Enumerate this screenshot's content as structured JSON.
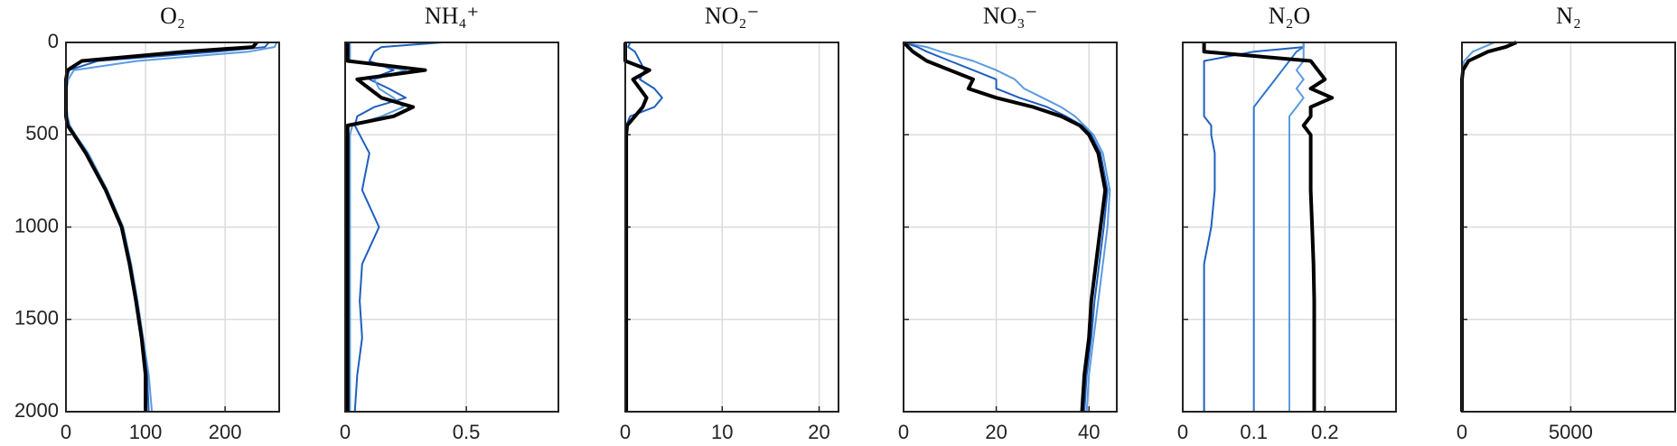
{
  "chart_data": [
    {
      "type": "line",
      "title": "O₂",
      "xlim": [
        0,
        268
      ],
      "xticks": [
        0,
        100,
        200
      ],
      "ylim": [
        0,
        2000
      ],
      "yticks": [
        0,
        500,
        1000,
        1500,
        2000
      ],
      "grid": true,
      "y_reversed": true,
      "y": [
        0,
        25,
        50,
        100,
        150,
        200,
        250,
        300,
        350,
        400,
        450,
        500,
        600,
        800,
        1000,
        1200,
        1400,
        1600,
        1800,
        2000
      ],
      "series": [
        {
          "color": "#5b9be0",
          "values": [
            265,
            262,
            230,
            90,
            10,
            3,
            1,
            1,
            1,
            2,
            5,
            12,
            28,
            52,
            72,
            82,
            90,
            97,
            104,
            108
          ]
        },
        {
          "color": "#1f5fbf",
          "values": [
            255,
            250,
            190,
            40,
            4,
            1,
            0,
            0,
            0,
            1,
            3,
            11,
            26,
            51,
            71,
            81,
            89,
            96,
            102,
            104
          ]
        },
        {
          "color": "#000000",
          "values": [
            240,
            235,
            150,
            20,
            2,
            0,
            0,
            0,
            0,
            0,
            2,
            10,
            25,
            50,
            70,
            80,
            88,
            95,
            100,
            100
          ]
        }
      ]
    },
    {
      "type": "line",
      "title": "NH₄⁺",
      "xlim": [
        0,
        0.88
      ],
      "xticks": [
        0,
        0.5
      ],
      "grid": true,
      "y": [
        0,
        25,
        50,
        100,
        150,
        200,
        250,
        300,
        350,
        400,
        450,
        500,
        600,
        800,
        1000,
        1200,
        1400,
        1600,
        1800,
        2000
      ],
      "series": [
        {
          "color": "#1f5fbf",
          "values": [
            0.4,
            0.15,
            0.12,
            0.1,
            0.2,
            0.1,
            0.18,
            0.25,
            0.12,
            0.05,
            0.04,
            0.06,
            0.1,
            0.07,
            0.14,
            0.07,
            0.06,
            0.07,
            0.05,
            0.04
          ]
        },
        {
          "color": "#5b9be0",
          "values": [
            0.02,
            0.02,
            0.02,
            0.02,
            0.25,
            0.12,
            0.14,
            0.2,
            0.24,
            0.15,
            0.03,
            0.02,
            0.02,
            0.02,
            0.02,
            0.02,
            0.02,
            0.02,
            0.02,
            0.02
          ]
        },
        {
          "color": "#000000",
          "values": [
            0.01,
            0.01,
            0.01,
            0.01,
            0.33,
            0.05,
            0.1,
            0.15,
            0.28,
            0.2,
            0.01,
            0.01,
            0.01,
            0.01,
            0.01,
            0.01,
            0.01,
            0.01,
            0.01,
            0.01
          ]
        }
      ]
    },
    {
      "type": "line",
      "title": "NO₂⁻",
      "xlim": [
        0,
        22
      ],
      "xticks": [
        0,
        10,
        20
      ],
      "grid": true,
      "y": [
        0,
        25,
        50,
        100,
        150,
        200,
        250,
        300,
        350,
        400,
        450,
        500,
        600,
        800,
        1000,
        1200,
        1400,
        1600,
        1800,
        2000
      ],
      "series": [
        {
          "color": "#1f5fbf",
          "values": [
            0.5,
            0.3,
            1,
            1.5,
            2,
            1.5,
            3,
            3.8,
            3,
            0.5,
            0.1,
            0.1,
            0.1,
            0.1,
            0.1,
            0.1,
            0.1,
            0.1,
            0.1,
            0.1
          ]
        },
        {
          "color": "#000000",
          "values": [
            0,
            0,
            0,
            0,
            2.5,
            0.8,
            1.5,
            2.2,
            1.8,
            1,
            0.2,
            0.1,
            0.1,
            0.1,
            0.1,
            0.1,
            0.1,
            0.1,
            0.1,
            0.1
          ]
        }
      ]
    },
    {
      "type": "line",
      "title": "NO₃⁻",
      "xlim": [
        0,
        46
      ],
      "xticks": [
        0,
        20,
        40
      ],
      "grid": true,
      "y": [
        0,
        25,
        50,
        100,
        150,
        200,
        250,
        300,
        350,
        400,
        450,
        500,
        600,
        800,
        1000,
        1200,
        1400,
        1600,
        1800,
        2000
      ],
      "series": [
        {
          "color": "#5b9be0",
          "values": [
            0,
            5,
            8,
            15,
            20,
            24,
            26,
            30,
            34,
            37,
            39,
            41,
            43,
            44.5,
            44,
            43,
            42,
            41,
            40,
            39.5
          ]
        },
        {
          "color": "#1f5fbf",
          "values": [
            0,
            3,
            5,
            10,
            15,
            20,
            20,
            25,
            31,
            35,
            38.5,
            40.5,
            42.5,
            44,
            43.2,
            42.2,
            41.2,
            40.5,
            39.5,
            39
          ]
        },
        {
          "color": "#000000",
          "values": [
            0,
            1,
            2,
            5,
            10,
            15,
            14,
            20,
            28,
            34,
            38,
            40,
            42,
            43.5,
            42.5,
            41.5,
            40.5,
            40,
            39,
            38.5
          ]
        }
      ]
    },
    {
      "type": "line",
      "title": "N₂O",
      "xlim": [
        0,
        0.3
      ],
      "xticks": [
        0,
        0.1,
        0.2
      ],
      "grid": true,
      "y": [
        0,
        25,
        50,
        100,
        150,
        200,
        250,
        300,
        350,
        400,
        450,
        500,
        600,
        800,
        1000,
        1200,
        1400,
        1600,
        1800,
        2000
      ],
      "series": [
        {
          "color": "#1f5fbf",
          "values": [
            0.17,
            0.17,
            0.1,
            0.03,
            0.03,
            0.03,
            0.03,
            0.03,
            0.03,
            0.03,
            0.04,
            0.04,
            0.045,
            0.045,
            0.04,
            0.03,
            0.03,
            0.03,
            0.03,
            0.03
          ]
        },
        {
          "color": "#2f74d0",
          "values": [
            0.17,
            0.17,
            0.16,
            0.15,
            0.14,
            0.13,
            0.12,
            0.11,
            0.1,
            0.1,
            0.1,
            0.1,
            0.1,
            0.1,
            0.1,
            0.1,
            0.1,
            0.1,
            0.1,
            0.1
          ]
        },
        {
          "color": "#5b9be0",
          "values": [
            0.17,
            0.17,
            0.17,
            0.17,
            0.16,
            0.17,
            0.16,
            0.17,
            0.16,
            0.15,
            0.15,
            0.15,
            0.15,
            0.15,
            0.15,
            0.15,
            0.15,
            0.15,
            0.15,
            0.15
          ]
        },
        {
          "color": "#000000",
          "values": [
            0.03,
            0.03,
            0.03,
            0.18,
            0.19,
            0.2,
            0.18,
            0.21,
            0.18,
            0.18,
            0.17,
            0.18,
            0.18,
            0.18,
            0.182,
            0.184,
            0.185,
            0.185,
            0.185,
            0.185
          ]
        }
      ]
    },
    {
      "type": "line",
      "title": "N₂",
      "xlim": [
        0,
        9800
      ],
      "xticks": [
        0,
        5000
      ],
      "grid": true,
      "y": [
        0,
        25,
        50,
        100,
        150,
        200,
        250,
        300,
        350,
        400,
        450,
        500,
        600,
        800,
        1000,
        1200,
        1400,
        1600,
        1800,
        2000
      ],
      "series": [
        {
          "color": "#5b9be0",
          "values": [
            1500,
            1000,
            500,
            100,
            0,
            0,
            0,
            0,
            0,
            0,
            0,
            0,
            0,
            0,
            0,
            0,
            0,
            0,
            0,
            0
          ]
        },
        {
          "color": "#000000",
          "values": [
            2500,
            2000,
            1200,
            300,
            50,
            0,
            0,
            0,
            0,
            0,
            0,
            0,
            0,
            0,
            0,
            0,
            0,
            0,
            0,
            0
          ]
        }
      ]
    }
  ]
}
